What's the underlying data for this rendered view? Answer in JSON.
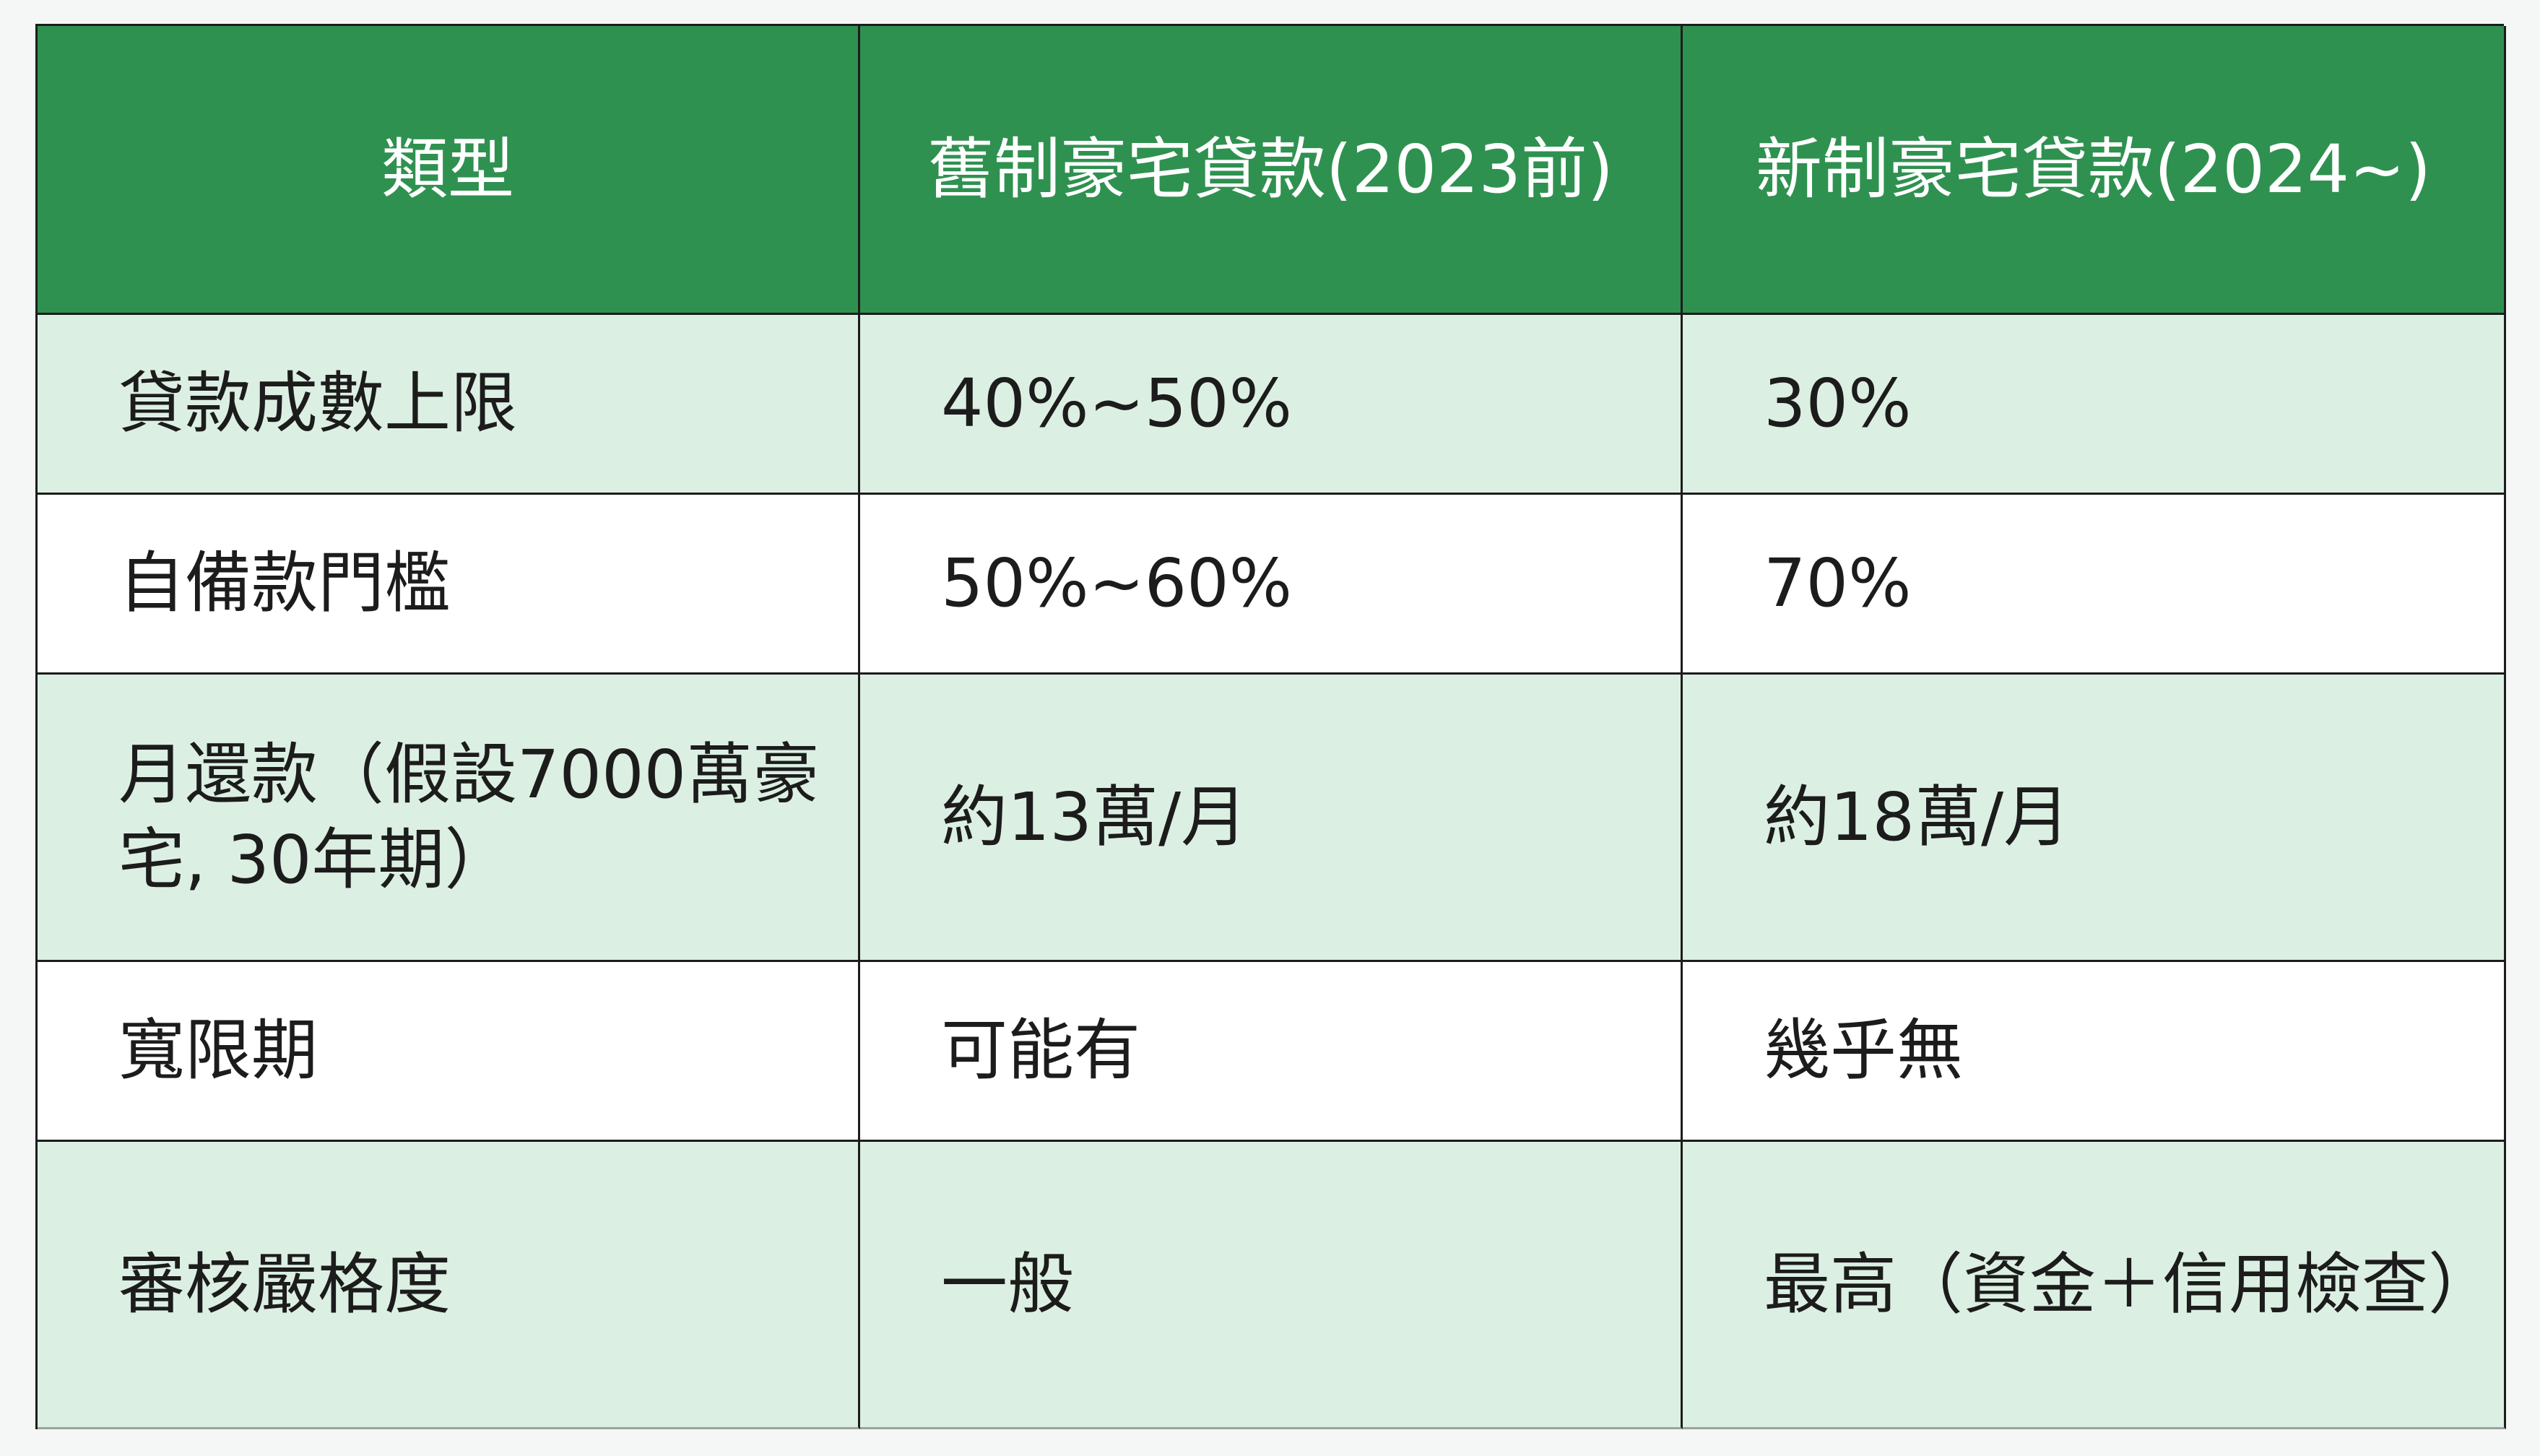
{
  "table": {
    "headers": [
      "類型",
      "舊制豪宅貸款(2023前)",
      "新制豪宅貸款(2024~)"
    ],
    "rows": [
      [
        "貸款成數上限",
        "40%~50%",
        "30%"
      ],
      [
        "自備款門檻",
        "50%~60%",
        "70%"
      ],
      [
        "月還款（假設7000萬豪宅, 30年期）",
        "約13萬/月",
        "約18萬/月"
      ],
      [
        "寬限期",
        "可能有",
        "幾乎無"
      ],
      [
        "審核嚴格度",
        "一般",
        "最高（資金＋信用檢查）"
      ]
    ]
  },
  "colors": {
    "header_bg": "#2f9150",
    "header_text": "#ffffff",
    "shaded_row_bg": "#dcefe3",
    "plain_row_bg": "#ffffff",
    "border": "#1c1c1c"
  }
}
